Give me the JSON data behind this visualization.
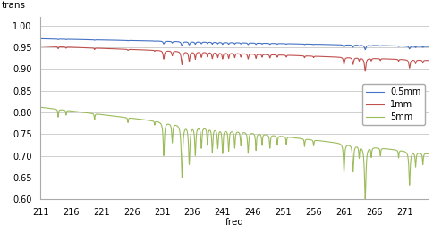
{
  "title": "",
  "xlabel": "freq",
  "ylabel": "trans",
  "xlim": [
    211,
    275
  ],
  "ylim": [
    0.6,
    1.02
  ],
  "xticks": [
    211,
    216,
    221,
    226,
    231,
    236,
    241,
    246,
    251,
    256,
    261,
    266,
    271
  ],
  "yticks": [
    0.6,
    0.65,
    0.7,
    0.75,
    0.8,
    0.85,
    0.9,
    0.95,
    1.0
  ],
  "color_05mm": "#4472C4",
  "color_1mm": "#C0504D",
  "color_5mm": "#9BBB59",
  "label_05mm": "0.5mm",
  "label_1mm": "1mm",
  "label_5mm": "5mm",
  "line_width": 0.8,
  "figsize": [
    4.85,
    2.6
  ],
  "dpi": 100,
  "background_color": "#ffffff",
  "grid_color": "#c8c8c8",
  "absorption_lines": [
    [
      213.9,
      0.008,
      0.07
    ],
    [
      215.2,
      0.005,
      0.06
    ],
    [
      219.9,
      0.006,
      0.07
    ],
    [
      225.4,
      0.005,
      0.07
    ],
    [
      229.8,
      0.004,
      0.06
    ],
    [
      231.3,
      0.035,
      0.12
    ],
    [
      232.7,
      0.02,
      0.1
    ],
    [
      234.3,
      0.055,
      0.14
    ],
    [
      235.5,
      0.04,
      0.13
    ],
    [
      236.5,
      0.03,
      0.11
    ],
    [
      237.5,
      0.022,
      0.1
    ],
    [
      238.5,
      0.018,
      0.09
    ],
    [
      239.3,
      0.025,
      0.1
    ],
    [
      240.2,
      0.02,
      0.1
    ],
    [
      241.0,
      0.025,
      0.1
    ],
    [
      242.0,
      0.022,
      0.1
    ],
    [
      243.0,
      0.018,
      0.09
    ],
    [
      244.0,
      0.015,
      0.09
    ],
    [
      245.2,
      0.022,
      0.1
    ],
    [
      246.5,
      0.018,
      0.09
    ],
    [
      247.5,
      0.012,
      0.08
    ],
    [
      248.8,
      0.014,
      0.09
    ],
    [
      250.0,
      0.01,
      0.08
    ],
    [
      251.5,
      0.008,
      0.07
    ],
    [
      254.5,
      0.008,
      0.07
    ],
    [
      256.0,
      0.006,
      0.07
    ],
    [
      261.0,
      0.03,
      0.11
    ],
    [
      262.5,
      0.028,
      0.11
    ],
    [
      263.5,
      0.012,
      0.08
    ],
    [
      264.5,
      0.055,
      0.14
    ],
    [
      265.5,
      0.01,
      0.08
    ],
    [
      267.0,
      0.008,
      0.07
    ],
    [
      270.0,
      0.008,
      0.07
    ],
    [
      271.8,
      0.035,
      0.12
    ],
    [
      272.8,
      0.015,
      0.09
    ],
    [
      274.0,
      0.012,
      0.08
    ]
  ]
}
